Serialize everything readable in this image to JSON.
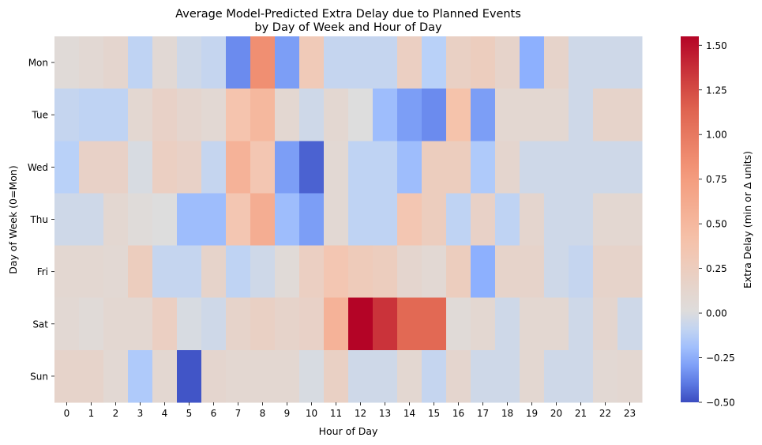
{
  "chart_data": {
    "type": "heatmap",
    "title": "Average Model-Predicted Extra Delay due to Planned Events",
    "subtitle": "by Day of Week and Hour of Day",
    "xlabel": "Hour of Day",
    "ylabel": "Day of Week (0=Mon)",
    "x": [
      "0",
      "1",
      "2",
      "3",
      "4",
      "5",
      "6",
      "7",
      "8",
      "9",
      "10",
      "11",
      "12",
      "13",
      "14",
      "15",
      "16",
      "17",
      "18",
      "19",
      "20",
      "21",
      "22",
      "23"
    ],
    "y": [
      "Mon",
      "Tue",
      "Wed",
      "Thu",
      "Fri",
      "Sat",
      "Sun"
    ],
    "values": [
      [
        0.05,
        0.08,
        0.12,
        -0.1,
        0.07,
        -0.05,
        -0.08,
        -0.35,
        0.85,
        -0.3,
        0.3,
        -0.08,
        -0.08,
        -0.08,
        0.22,
        -0.12,
        0.2,
        0.25,
        0.15,
        -0.25,
        0.15,
        -0.05,
        -0.05,
        -0.05
      ],
      [
        -0.08,
        -0.1,
        -0.1,
        0.1,
        0.18,
        0.12,
        0.08,
        0.38,
        0.5,
        0.1,
        -0.05,
        0.1,
        0.0,
        -0.2,
        -0.3,
        -0.35,
        0.4,
        -0.3,
        0.1,
        0.1,
        0.1,
        -0.05,
        0.15,
        0.15
      ],
      [
        -0.12,
        0.18,
        0.18,
        -0.02,
        0.22,
        0.18,
        -0.08,
        0.55,
        0.35,
        -0.3,
        -0.45,
        0.08,
        -0.1,
        -0.1,
        -0.2,
        0.25,
        0.25,
        -0.15,
        0.12,
        -0.05,
        -0.05,
        -0.05,
        -0.05,
        -0.05
      ],
      [
        -0.05,
        -0.05,
        0.1,
        0.03,
        0.0,
        -0.2,
        -0.2,
        0.35,
        0.6,
        -0.2,
        -0.3,
        0.08,
        -0.1,
        -0.1,
        0.35,
        0.25,
        -0.1,
        0.18,
        -0.1,
        0.12,
        -0.05,
        -0.05,
        0.1,
        0.1
      ],
      [
        0.1,
        0.1,
        0.08,
        0.25,
        -0.08,
        -0.08,
        0.15,
        -0.1,
        -0.05,
        0.05,
        0.22,
        0.35,
        0.28,
        0.25,
        0.12,
        0.08,
        0.25,
        -0.25,
        0.15,
        0.15,
        -0.05,
        -0.08,
        0.15,
        0.15
      ],
      [
        0.08,
        0.05,
        0.1,
        0.1,
        0.22,
        -0.02,
        -0.05,
        0.15,
        0.2,
        0.15,
        0.18,
        0.55,
        1.55,
        1.35,
        1.1,
        1.1,
        0.05,
        0.1,
        -0.05,
        0.1,
        0.1,
        -0.05,
        0.12,
        -0.05
      ],
      [
        0.15,
        0.15,
        0.08,
        -0.15,
        0.1,
        -0.48,
        0.12,
        0.1,
        0.1,
        0.1,
        -0.02,
        0.2,
        -0.05,
        -0.05,
        0.1,
        -0.08,
        0.12,
        -0.05,
        -0.05,
        0.1,
        -0.05,
        -0.05,
        0.08,
        0.1
      ]
    ],
    "vmin": -0.5,
    "vmax": 1.55,
    "colormap": "coolwarm",
    "colorbar": {
      "label": "Extra Delay (min or Δ units)",
      "ticks": [
        -0.5,
        -0.25,
        0.0,
        0.25,
        0.5,
        0.75,
        1.0,
        1.25,
        1.5
      ],
      "tick_labels": [
        "−0.50",
        "−0.25",
        "0.00",
        "0.25",
        "0.50",
        "0.75",
        "1.00",
        "1.25",
        "1.50"
      ]
    }
  }
}
